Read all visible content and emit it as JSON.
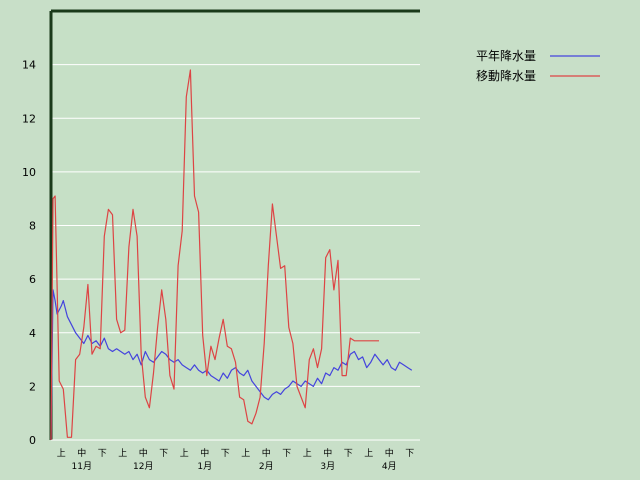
{
  "chart_data": {
    "type": "line",
    "title": "",
    "xlabel": "",
    "ylabel": "",
    "ylim": [
      0,
      16
    ],
    "yticks": [
      0,
      2,
      4,
      6,
      8,
      10,
      12,
      14
    ],
    "grid": true,
    "legend_position": "top-right",
    "x_periods": [
      "上",
      "中",
      "下",
      "上",
      "中",
      "下",
      "上",
      "中",
      "下",
      "上",
      "中",
      "下",
      "上",
      "中",
      "下",
      "上",
      "中",
      "下"
    ],
    "x_months": [
      "11月",
      "12月",
      "1月",
      "2月",
      "3月",
      "4月"
    ],
    "x_period_range": [
      0,
      18
    ],
    "series": [
      {
        "name": "平年降水量",
        "color": "#4444dd",
        "x": [
          0,
          0.1,
          0.2,
          0.3,
          0.5,
          0.6,
          0.8,
          1.0,
          1.2,
          1.4,
          1.6,
          1.8,
          2.0,
          2.2,
          2.4,
          2.6,
          2.8,
          3.0,
          3.2,
          3.4,
          3.6,
          3.8,
          4.0,
          4.2,
          4.4,
          4.6,
          4.8,
          5.0,
          5.2,
          5.4,
          5.6,
          5.8,
          6.0,
          6.2,
          6.4,
          6.6,
          6.8,
          7.0,
          7.2,
          7.4,
          7.6,
          7.8,
          8.0,
          8.2,
          8.4,
          8.6,
          8.8,
          9.0,
          9.2,
          9.4,
          9.6,
          9.8,
          10.0,
          10.2,
          10.4,
          10.6,
          10.8,
          11.0,
          11.2,
          11.4,
          11.6,
          11.8,
          12.0,
          12.2,
          12.4,
          12.6,
          12.8,
          13.0,
          13.2,
          13.4,
          13.6,
          13.8,
          14.0,
          14.2,
          14.4,
          14.6,
          14.8,
          15.0,
          15.2,
          15.4,
          15.6,
          15.8,
          16.0,
          16.2,
          16.4,
          16.6,
          16.8,
          17.0,
          17.2,
          17.4,
          17.6
        ],
        "values": [
          0,
          5.6,
          5.2,
          4.7,
          5.0,
          5.2,
          4.6,
          4.3,
          4.0,
          3.8,
          3.6,
          3.9,
          3.6,
          3.7,
          3.5,
          3.8,
          3.4,
          3.3,
          3.4,
          3.3,
          3.2,
          3.3,
          3.0,
          3.2,
          2.8,
          3.3,
          3.0,
          2.9,
          3.1,
          3.3,
          3.2,
          3.0,
          2.9,
          3.0,
          2.8,
          2.7,
          2.6,
          2.8,
          2.6,
          2.5,
          2.6,
          2.4,
          2.3,
          2.2,
          2.5,
          2.3,
          2.6,
          2.7,
          2.5,
          2.4,
          2.6,
          2.2,
          2.0,
          1.8,
          1.6,
          1.5,
          1.7,
          1.8,
          1.7,
          1.9,
          2.0,
          2.2,
          2.1,
          2.0,
          2.2,
          2.1,
          2.0,
          2.3,
          2.1,
          2.5,
          2.4,
          2.7,
          2.6,
          2.9,
          2.8,
          3.2,
          3.3,
          3.0,
          3.1,
          2.7,
          2.9,
          3.2,
          3.0,
          2.8,
          3.0,
          2.7,
          2.6,
          2.9,
          2.8,
          2.7,
          2.6
        ]
      },
      {
        "name": "移動降水量",
        "color": "#dd4444",
        "x": [
          0,
          0.1,
          0.2,
          0.4,
          0.6,
          0.8,
          1.0,
          1.2,
          1.4,
          1.6,
          1.8,
          2.0,
          2.2,
          2.4,
          2.6,
          2.8,
          3.0,
          3.2,
          3.4,
          3.6,
          3.8,
          4.0,
          4.2,
          4.4,
          4.6,
          4.8,
          5.0,
          5.2,
          5.4,
          5.6,
          5.8,
          6.0,
          6.2,
          6.4,
          6.6,
          6.8,
          7.0,
          7.2,
          7.4,
          7.6,
          7.8,
          8.0,
          8.2,
          8.4,
          8.6,
          8.8,
          9.0,
          9.2,
          9.4,
          9.6,
          9.8,
          10.0,
          10.2,
          10.4,
          10.6,
          10.8,
          11.0,
          11.2,
          11.4,
          11.6,
          11.8,
          12.0,
          12.2,
          12.4,
          12.6,
          12.8,
          13.0,
          13.2,
          13.4,
          13.6,
          13.8,
          14.0,
          14.2,
          14.4,
          14.6,
          14.8,
          15.0,
          15.2,
          15.4,
          15.6,
          15.8,
          16.0
        ],
        "values": [
          0,
          9.0,
          9.1,
          2.2,
          1.9,
          0.1,
          0.1,
          3.0,
          3.2,
          4.2,
          5.8,
          3.2,
          3.5,
          3.4,
          7.6,
          8.6,
          8.4,
          4.5,
          4.0,
          4.1,
          7.2,
          8.6,
          7.6,
          3.2,
          1.6,
          1.2,
          2.5,
          4.2,
          5.6,
          4.5,
          2.4,
          1.9,
          6.5,
          7.8,
          12.8,
          13.8,
          9.1,
          8.5,
          3.9,
          2.4,
          3.5,
          3.0,
          3.8,
          4.5,
          3.5,
          3.4,
          2.9,
          1.6,
          1.5,
          0.7,
          0.6,
          1.0,
          1.6,
          3.6,
          6.5,
          8.8,
          7.6,
          6.4,
          6.5,
          4.2,
          3.6,
          2.0,
          1.6,
          1.2,
          3.0,
          3.4,
          2.7,
          3.4,
          6.8,
          7.1,
          5.6,
          6.7,
          2.4,
          2.4,
          3.8,
          3.7,
          3.7,
          3.7,
          3.7,
          3.7,
          3.7,
          3.7
        ]
      }
    ]
  }
}
